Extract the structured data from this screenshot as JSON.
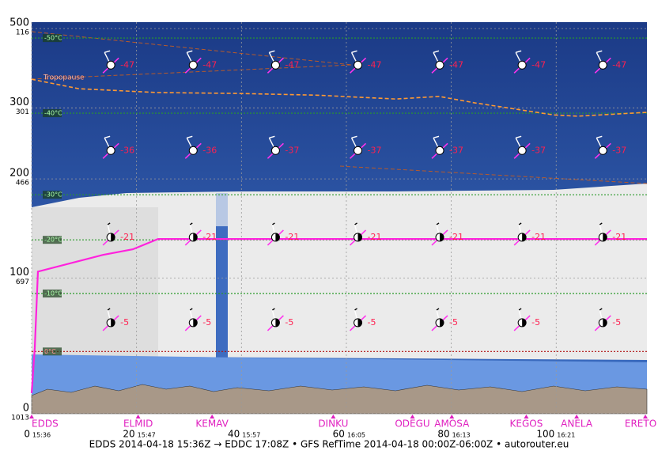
{
  "chart_data": {
    "type": "line",
    "caption": "EDDS 2014-04-18 15:36Z → EDDC 17:08Z • GFS RefTime 2014-04-18 00:00Z-06:00Z • autorouter.eu",
    "xlim": [
      0,
      117.3
    ],
    "ylim": [
      1013,
      101
    ],
    "xticks": [
      0,
      20,
      40,
      60,
      80,
      100
    ],
    "xtick_times": [
      "15:36",
      "15:47",
      "15:57",
      "16:05",
      "16:13",
      "16:21"
    ],
    "yticks": [
      1013,
      697,
      466,
      301,
      116
    ],
    "flight_levels": [
      0,
      100,
      200,
      300,
      500
    ],
    "grid": true,
    "waypoints": {
      "names": [
        "EDDS",
        "ELMID",
        "KEMAV",
        "DINKU",
        "ODEGU",
        "AMOSA",
        "KEGOS",
        "ANELA",
        "ERETO"
      ],
      "x": [
        0,
        20.3,
        34.4,
        57.5,
        72.6,
        80.1,
        94.3,
        103.9,
        117
      ]
    },
    "series": [
      {
        "color": "#ff22dd",
        "x": [
          0,
          0.6,
          1.2,
          13.6,
          19.3,
          24.1,
          117.3
        ],
        "values": [
          965,
          860,
          682,
          643,
          630,
          606,
          606
        ]
      },
      {
        "label": "Tropopause",
        "color": "#ff9933",
        "x": [
          0,
          9,
          24.1,
          39.2,
          54.3,
          69.4,
          77.7,
          84.5,
          99.5,
          104.1,
          117.3
        ],
        "values": [
          234,
          256,
          265,
          267,
          271,
          280,
          274,
          289,
          317,
          320,
          311
        ]
      }
    ],
    "isotherms": {
      "labels": [
        "-50°C",
        "-40°C",
        "-30°C",
        "-20°C",
        "-10°C",
        "0°C"
      ],
      "values": [
        138,
        313,
        503,
        608,
        733,
        868
      ],
      "colors": [
        "#2a9a2a",
        "#2a9a2a",
        "#2a9a2a",
        "#2a9a2a",
        "#2a9a2a",
        "#b01010"
      ]
    },
    "wind": {
      "x": [
        15.1,
        30.8,
        46.5,
        62.2,
        77.8,
        93.5,
        108.9
      ],
      "rows": [
        {
          "pressure": 201,
          "temperatures": [
            -47,
            -47,
            -47,
            -47,
            -47,
            -47,
            -47
          ]
        },
        {
          "pressure": 400,
          "temperatures": [
            -36,
            -36,
            -37,
            -37,
            -37,
            -37,
            -37
          ]
        },
        {
          "pressure": 602,
          "temperatures": [
            -21,
            -21,
            -21,
            -21,
            -21,
            -21,
            -21
          ]
        },
        {
          "pressure": 801,
          "temperatures": [
            -5,
            -5,
            -5,
            -5,
            -5,
            -5,
            -5
          ]
        }
      ]
    }
  }
}
